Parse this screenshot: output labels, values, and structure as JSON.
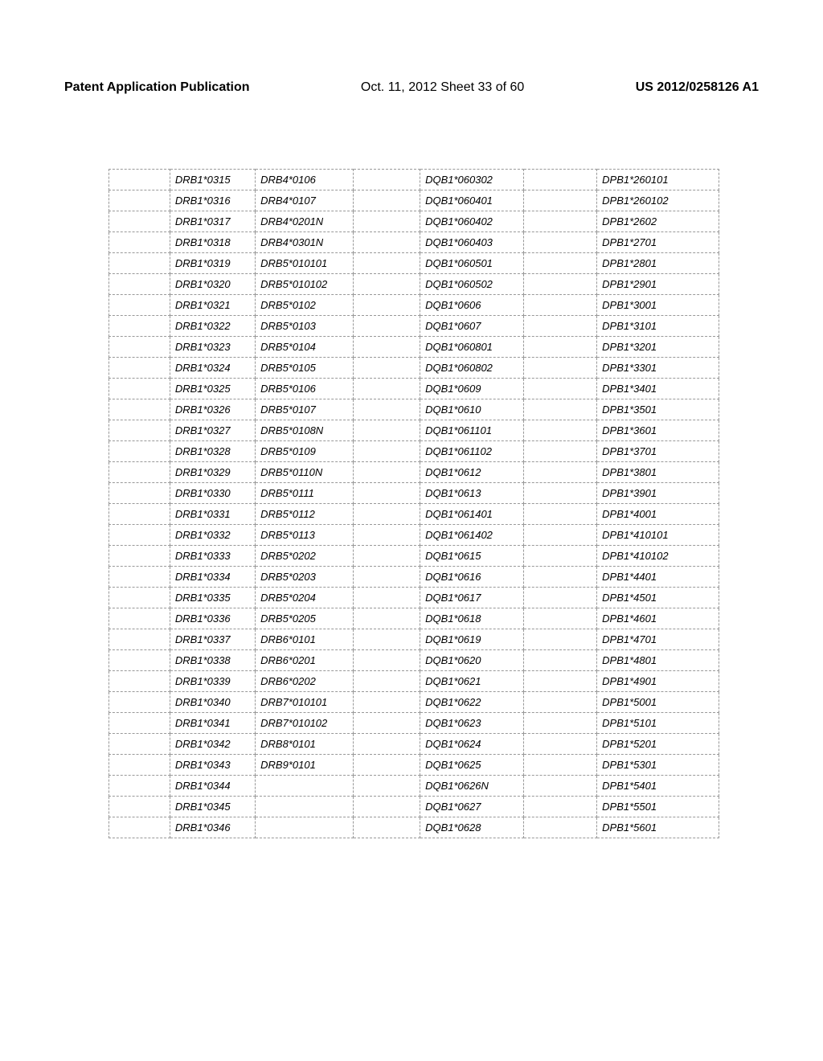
{
  "header": {
    "left": "Patent Application Publication",
    "center": "Oct. 11, 2012  Sheet 33 of 60",
    "right": "US 2012/0258126 A1"
  },
  "table": {
    "rows": [
      [
        "",
        "DRB1*0315",
        "DRB4*0106",
        "",
        "DQB1*060302",
        "",
        "DPB1*260101"
      ],
      [
        "",
        "DRB1*0316",
        "DRB4*0107",
        "",
        "DQB1*060401",
        "",
        "DPB1*260102"
      ],
      [
        "",
        "DRB1*0317",
        "DRB4*0201N",
        "",
        "DQB1*060402",
        "",
        "DPB1*2602"
      ],
      [
        "",
        "DRB1*0318",
        "DRB4*0301N",
        "",
        "DQB1*060403",
        "",
        "DPB1*2701"
      ],
      [
        "",
        "DRB1*0319",
        "DRB5*010101",
        "",
        "DQB1*060501",
        "",
        "DPB1*2801"
      ],
      [
        "",
        "DRB1*0320",
        "DRB5*010102",
        "",
        "DQB1*060502",
        "",
        "DPB1*2901"
      ],
      [
        "",
        "DRB1*0321",
        "DRB5*0102",
        "",
        "DQB1*0606",
        "",
        "DPB1*3001"
      ],
      [
        "",
        "DRB1*0322",
        "DRB5*0103",
        "",
        "DQB1*0607",
        "",
        "DPB1*3101"
      ],
      [
        "",
        "DRB1*0323",
        "DRB5*0104",
        "",
        "DQB1*060801",
        "",
        "DPB1*3201"
      ],
      [
        "",
        "DRB1*0324",
        "DRB5*0105",
        "",
        "DQB1*060802",
        "",
        "DPB1*3301"
      ],
      [
        "",
        "DRB1*0325",
        "DRB5*0106",
        "",
        "DQB1*0609",
        "",
        "DPB1*3401"
      ],
      [
        "",
        "DRB1*0326",
        "DRB5*0107",
        "",
        "DQB1*0610",
        "",
        "DPB1*3501"
      ],
      [
        "",
        "DRB1*0327",
        "DRB5*0108N",
        "",
        "DQB1*061101",
        "",
        "DPB1*3601"
      ],
      [
        "",
        "DRB1*0328",
        "DRB5*0109",
        "",
        "DQB1*061102",
        "",
        "DPB1*3701"
      ],
      [
        "",
        "DRB1*0329",
        "DRB5*0110N",
        "",
        "DQB1*0612",
        "",
        "DPB1*3801"
      ],
      [
        "",
        "DRB1*0330",
        "DRB5*0111",
        "",
        "DQB1*0613",
        "",
        "DPB1*3901"
      ],
      [
        "",
        "DRB1*0331",
        "DRB5*0112",
        "",
        "DQB1*061401",
        "",
        "DPB1*4001"
      ],
      [
        "",
        "DRB1*0332",
        "DRB5*0113",
        "",
        "DQB1*061402",
        "",
        "DPB1*410101"
      ],
      [
        "",
        "DRB1*0333",
        "DRB5*0202",
        "",
        "DQB1*0615",
        "",
        "DPB1*410102"
      ],
      [
        "",
        "DRB1*0334",
        "DRB5*0203",
        "",
        "DQB1*0616",
        "",
        "DPB1*4401"
      ],
      [
        "",
        "DRB1*0335",
        "DRB5*0204",
        "",
        "DQB1*0617",
        "",
        "DPB1*4501"
      ],
      [
        "",
        "DRB1*0336",
        "DRB5*0205",
        "",
        "DQB1*0618",
        "",
        "DPB1*4601"
      ],
      [
        "",
        "DRB1*0337",
        "DRB6*0101",
        "",
        "DQB1*0619",
        "",
        "DPB1*4701"
      ],
      [
        "",
        "DRB1*0338",
        "DRB6*0201",
        "",
        "DQB1*0620",
        "",
        "DPB1*4801"
      ],
      [
        "",
        "DRB1*0339",
        "DRB6*0202",
        "",
        "DQB1*0621",
        "",
        "DPB1*4901"
      ],
      [
        "",
        "DRB1*0340",
        "DRB7*010101",
        "",
        "DQB1*0622",
        "",
        "DPB1*5001"
      ],
      [
        "",
        "DRB1*0341",
        "DRB7*010102",
        "",
        "DQB1*0623",
        "",
        "DPB1*5101"
      ],
      [
        "",
        "DRB1*0342",
        "DRB8*0101",
        "",
        "DQB1*0624",
        "",
        "DPB1*5201"
      ],
      [
        "",
        "DRB1*0343",
        "DRB9*0101",
        "",
        "DQB1*0625",
        "",
        "DPB1*5301"
      ],
      [
        "",
        "DRB1*0344",
        "",
        "",
        "DQB1*0626N",
        "",
        "DPB1*5401"
      ],
      [
        "",
        "DRB1*0345",
        "",
        "",
        "DQB1*0627",
        "",
        "DPB1*5501"
      ],
      [
        "",
        "DRB1*0346",
        "",
        "",
        "DQB1*0628",
        "",
        "DPB1*5601"
      ]
    ]
  }
}
